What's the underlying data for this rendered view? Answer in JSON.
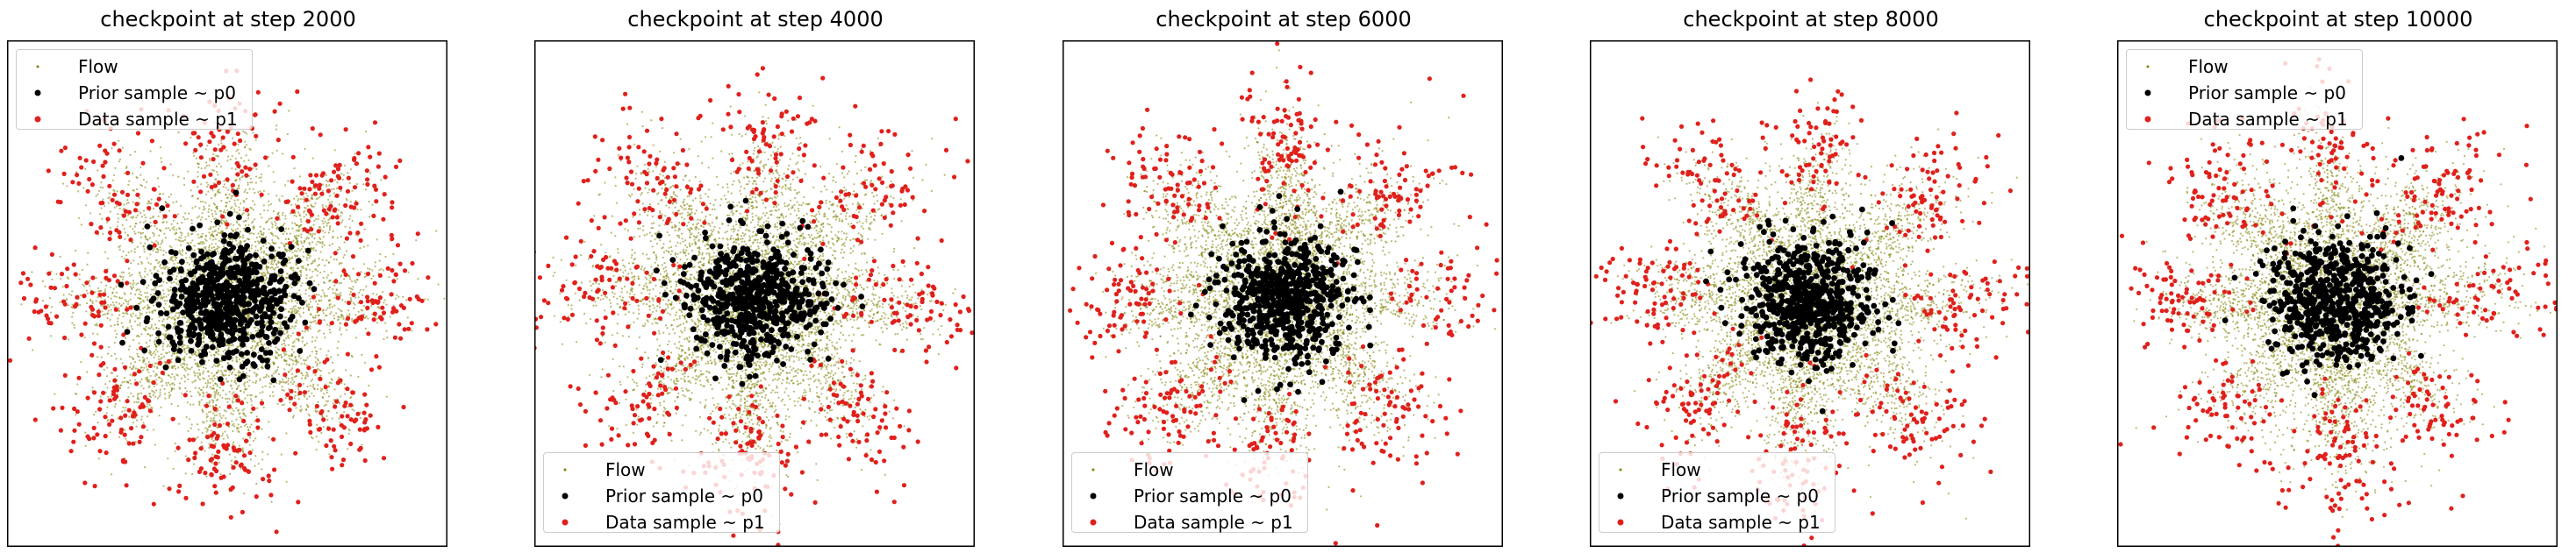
{
  "chart_data": [
    {
      "type": "scatter",
      "title": "checkpoint at step 2000",
      "step": 2000,
      "legend_position": "upper left",
      "flow_spread": 1.0
    },
    {
      "type": "scatter",
      "title": "checkpoint at step 4000",
      "step": 4000,
      "legend_position": "lower left",
      "flow_spread": 0.9
    },
    {
      "type": "scatter",
      "title": "checkpoint at step 6000",
      "step": 6000,
      "legend_position": "lower left",
      "flow_spread": 0.85
    },
    {
      "type": "scatter",
      "title": "checkpoint at step 8000",
      "step": 8000,
      "legend_position": "lower left",
      "flow_spread": 0.8
    },
    {
      "type": "scatter",
      "title": "checkpoint at step 10000",
      "step": 10000,
      "legend_position": "upper left",
      "flow_spread": 0.75
    }
  ],
  "legend": {
    "entries": [
      {
        "label": "Flow",
        "color": "#808000",
        "marker": "small-dot"
      },
      {
        "label": "Prior sample ~ p0",
        "color": "#000000",
        "marker": "dot"
      },
      {
        "label": "Data sample ~ p1",
        "color": "#e0201b",
        "marker": "dot"
      }
    ]
  },
  "series": [
    {
      "name": "Flow",
      "color": "#808000"
    },
    {
      "name": "Prior sample ~ p0",
      "color": "#000000"
    },
    {
      "name": "Data sample ~ p1",
      "color": "#e0201b"
    }
  ],
  "data_distribution": {
    "shape": "8-petal flower",
    "petals": 8,
    "prior": "standard normal",
    "axes": "hidden ticks"
  }
}
